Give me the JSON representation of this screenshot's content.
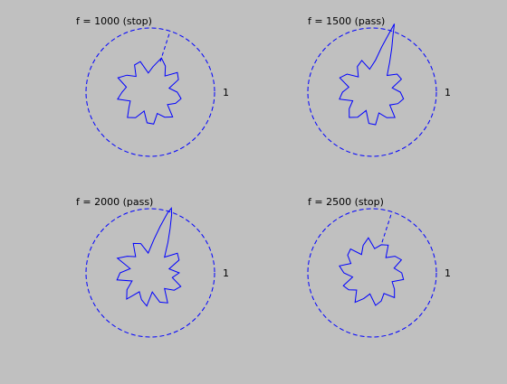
{
  "figure": {
    "background": "#c0c0c0",
    "line_color": "#0000ff",
    "text_color": "#000000"
  },
  "chart_data": [
    {
      "type": "polar-line",
      "title": "f = 1000 (stop)",
      "reference_circle": {
        "radius": 1,
        "label": "1",
        "style": "dashed"
      },
      "rlim": [
        0,
        1
      ],
      "series": [
        {
          "style": "solid",
          "theta_deg": [
            0,
            12,
            24,
            36,
            48,
            60,
            72,
            84,
            96,
            108,
            120,
            132,
            144,
            156,
            168,
            180,
            192,
            204,
            216,
            228,
            240,
            252,
            264,
            276,
            288,
            300,
            312,
            324,
            336,
            348
          ],
          "r": [
            0.42,
            0.3,
            0.48,
            0.52,
            0.34,
            0.47,
            0.56,
            0.4,
            0.3,
            0.5,
            0.49,
            0.33,
            0.45,
            0.55,
            0.38,
            0.44,
            0.52,
            0.34,
            0.41,
            0.53,
            0.46,
            0.31,
            0.48,
            0.5,
            0.35,
            0.45,
            0.52,
            0.33,
            0.43,
            0.49
          ]
        },
        {
          "style": "dashed",
          "theta_deg": [
            72,
            72
          ],
          "r": [
            0.5,
            1.0
          ]
        }
      ]
    },
    {
      "type": "polar-line",
      "title": "f = 1500 (pass)",
      "reference_circle": {
        "radius": 1,
        "label": "1",
        "style": "dashed"
      },
      "rlim": [
        0,
        1
      ],
      "series": [
        {
          "style": "solid",
          "theta_deg": [
            0,
            12,
            24,
            36,
            48,
            60,
            66,
            70,
            72,
            74,
            78,
            84,
            96,
            108,
            120,
            132,
            144,
            156,
            168,
            180,
            192,
            204,
            216,
            228,
            240,
            252,
            264,
            276,
            288,
            300,
            312,
            324,
            336,
            348
          ],
          "r": [
            0.44,
            0.32,
            0.5,
            0.48,
            0.35,
            0.55,
            0.75,
            0.95,
            1.12,
            0.95,
            0.72,
            0.5,
            0.36,
            0.52,
            0.46,
            0.32,
            0.48,
            0.55,
            0.37,
            0.46,
            0.52,
            0.33,
            0.44,
            0.53,
            0.45,
            0.3,
            0.49,
            0.51,
            0.34,
            0.46,
            0.53,
            0.34,
            0.44,
            0.5
          ]
        }
      ]
    },
    {
      "type": "polar-line",
      "title": "f = 2000 (pass)",
      "reference_circle": {
        "radius": 1,
        "label": "1",
        "style": "dashed"
      },
      "rlim": [
        0,
        1
      ],
      "series": [
        {
          "style": "solid",
          "theta_deg": [
            0,
            12,
            24,
            36,
            48,
            60,
            66,
            70,
            72,
            74,
            78,
            84,
            96,
            108,
            120,
            132,
            144,
            156,
            168,
            180,
            192,
            204,
            216,
            228,
            240,
            252,
            264,
            276,
            288,
            300,
            312,
            324,
            336,
            348
          ],
          "r": [
            0.45,
            0.3,
            0.49,
            0.52,
            0.33,
            0.55,
            0.76,
            0.97,
            1.06,
            0.97,
            0.74,
            0.52,
            0.31,
            0.48,
            0.53,
            0.34,
            0.44,
            0.56,
            0.32,
            0.47,
            0.53,
            0.31,
            0.45,
            0.55,
            0.34,
            0.44,
            0.52,
            0.3,
            0.48,
            0.54,
            0.33,
            0.46,
            0.52,
            0.35
          ]
        }
      ]
    },
    {
      "type": "polar-line",
      "title": "f = 2500 (stop)",
      "reference_circle": {
        "radius": 1,
        "label": "1",
        "style": "dashed"
      },
      "rlim": [
        0,
        1
      ],
      "series": [
        {
          "style": "solid",
          "theta_deg": [
            0,
            12,
            24,
            36,
            48,
            60,
            72,
            84,
            96,
            108,
            120,
            132,
            144,
            156,
            168,
            180,
            192,
            204,
            216,
            228,
            240,
            252,
            264,
            276,
            288,
            300,
            312,
            324,
            336,
            348
          ],
          "r": [
            0.46,
            0.35,
            0.5,
            0.44,
            0.32,
            0.5,
            0.46,
            0.38,
            0.55,
            0.45,
            0.33,
            0.5,
            0.47,
            0.36,
            0.52,
            0.44,
            0.31,
            0.49,
            0.45,
            0.36,
            0.53,
            0.42,
            0.33,
            0.51,
            0.46,
            0.37,
            0.52,
            0.43,
            0.34,
            0.5
          ]
        },
        {
          "style": "dashed",
          "theta_deg": [
            72,
            72
          ],
          "r": [
            0.5,
            1.0
          ]
        }
      ]
    }
  ]
}
